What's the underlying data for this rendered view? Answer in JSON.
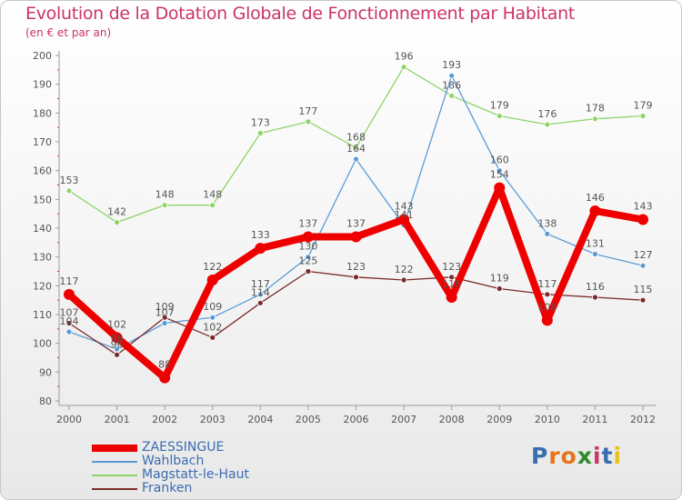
{
  "header": {
    "title": "Evolution de la Dotation Globale de Fonctionnement par Habitant",
    "subtitle": "(en € et par an)"
  },
  "logo": {
    "text": "Proxiti",
    "colors": [
      "#3a6db0",
      "#e8731a",
      "#e8731a",
      "#2e8b2e",
      "#cc3366",
      "#3a6db0",
      "#e8c21a"
    ]
  },
  "chart_data": {
    "type": "line",
    "title": "Evolution de la Dotation Globale de Fonctionnement par Habitant",
    "subtitle": "(en € et par an)",
    "xlabel": "",
    "ylabel": "",
    "x": [
      "2000",
      "2001",
      "2002",
      "2003",
      "2004",
      "2005",
      "2006",
      "2007",
      "2008",
      "2009",
      "2010",
      "2011",
      "2012"
    ],
    "ylim": [
      80,
      200
    ],
    "yticks": [
      80,
      90,
      100,
      110,
      120,
      130,
      140,
      150,
      160,
      170,
      180,
      190,
      200
    ],
    "grid": false,
    "legend_position": "bottom-left",
    "series": [
      {
        "name": "ZAESSINGUE",
        "color": "#ee0000",
        "values": [
          117,
          102,
          88,
          122,
          133,
          137,
          137,
          143,
          116,
          154,
          108,
          146,
          143
        ],
        "labels": [
          "117",
          "102",
          "88",
          "122",
          "133",
          "137",
          "137",
          "143",
          "116",
          "154",
          "108",
          "146",
          "143"
        ]
      },
      {
        "name": "Wahlbach",
        "color": "#5b9bd5",
        "values": [
          104,
          98,
          107,
          109,
          117,
          130,
          164,
          141,
          193,
          160,
          138,
          131,
          127
        ],
        "labels": [
          "104",
          "98",
          "107",
          "109",
          "117",
          "130",
          "164",
          "141",
          "193",
          "160",
          "138",
          "131",
          "127"
        ]
      },
      {
        "name": "Magstatt-le-Haut",
        "color": "#8fd468",
        "values": [
          153,
          142,
          148,
          148,
          173,
          177,
          168,
          196,
          186,
          179,
          176,
          178,
          179
        ],
        "labels": [
          "153",
          "142",
          "148",
          "148",
          "173",
          "177",
          "168",
          "196",
          "186",
          "179",
          "176",
          "178",
          "179"
        ]
      },
      {
        "name": "Franken",
        "color": "#7a2a2a",
        "values": [
          107,
          96,
          109,
          102,
          114,
          125,
          123,
          122,
          123,
          119,
          117,
          116,
          115
        ],
        "labels": [
          "107",
          "96",
          "109",
          "102",
          "114",
          "125",
          "123",
          "122",
          "123",
          "119",
          "117",
          "116",
          "115"
        ]
      }
    ]
  }
}
